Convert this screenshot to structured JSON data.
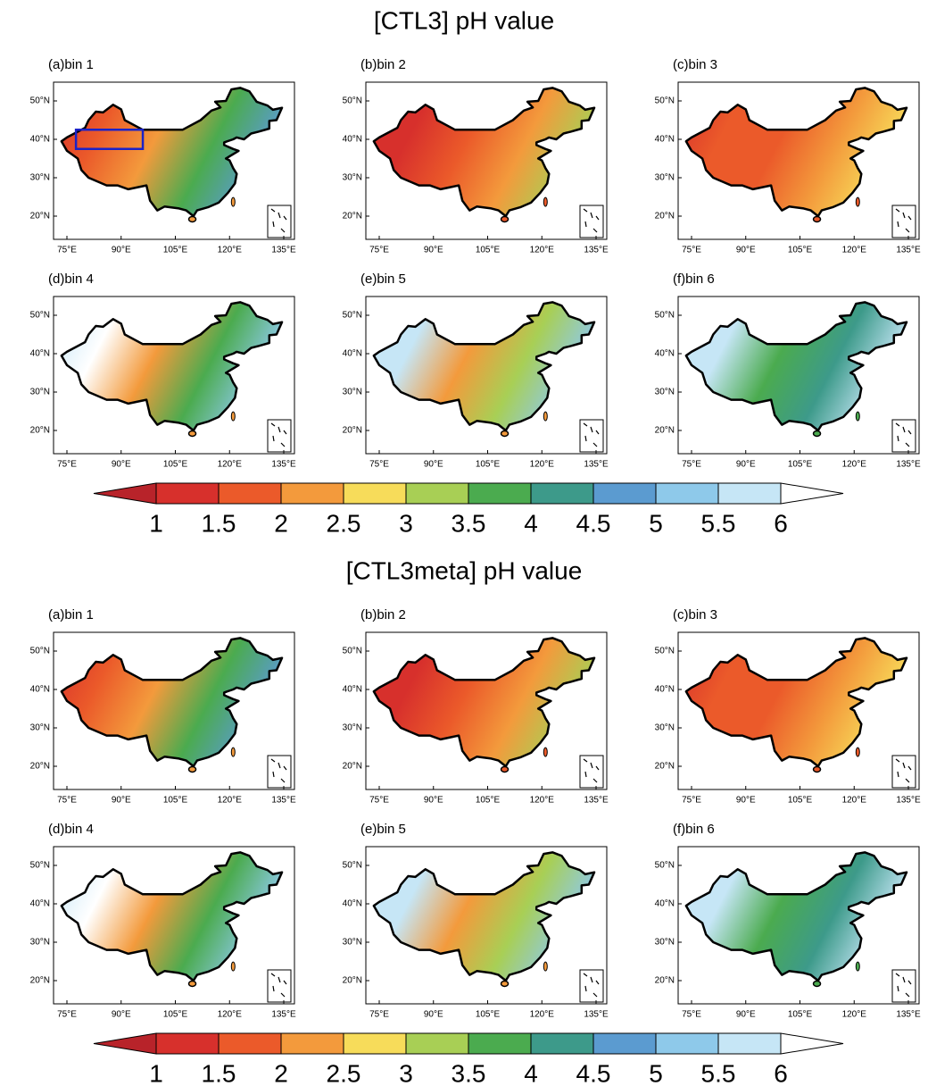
{
  "figures": [
    {
      "title": "[CTL3]  pH  value",
      "panels": [
        "(a)bin 1",
        "(b)bin 2",
        "(c)bin 3",
        "(d)bin 4",
        "(e)bin 5",
        "(f)bin 6"
      ],
      "colorbar": {
        "labels": [
          "1",
          "1.5",
          "2",
          "2.5",
          "3",
          "3.5",
          "4",
          "4.5",
          "5",
          "5.5",
          "6"
        ],
        "colors": [
          "#b8232a",
          "#d7302c",
          "#eb5a2a",
          "#f39a3c",
          "#f7dc5a",
          "#a8cf55",
          "#4bab4f",
          "#3d9a8a",
          "#5b9bd0",
          "#8ec9ea",
          "#c6e6f6",
          "#ffffff"
        ]
      }
    },
    {
      "title": "[CTL3meta]  pH  value",
      "panels": [
        "(a)bin 1",
        "(b)bin 2",
        "(c)bin 3",
        "(d)bin 4",
        "(e)bin 5",
        "(f)bin 6"
      ],
      "colorbar": {
        "labels": [
          "1",
          "1.5",
          "2",
          "2.5",
          "3",
          "3.5",
          "4",
          "4.5",
          "5",
          "5.5",
          "6"
        ],
        "colors": [
          "#b8232a",
          "#d7302c",
          "#eb5a2a",
          "#f39a3c",
          "#f7dc5a",
          "#a8cf55",
          "#4bab4f",
          "#3d9a8a",
          "#5b9bd0",
          "#8ec9ea",
          "#c6e6f6",
          "#ffffff"
        ]
      }
    }
  ],
  "lat_ticks": [
    "50°N",
    "40°N",
    "30°N",
    "20°N"
  ],
  "lon_ticks": [
    "75°E",
    "90°E",
    "105°E",
    "120°E",
    "135°E"
  ]
}
